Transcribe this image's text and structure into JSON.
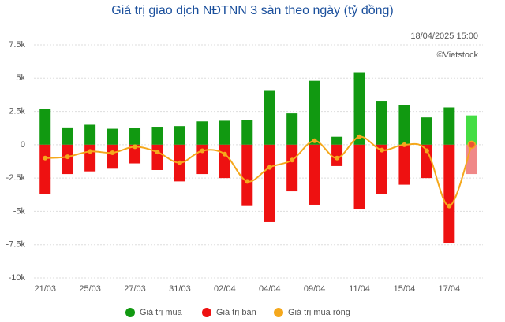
{
  "chart_data": {
    "type": "bar_line",
    "title": "Giá trị giao dịch NĐTNN 3 sàn theo ngày (tỷ đồng)",
    "annotations": [
      "18/04/2025 15:00",
      "©Vietstock"
    ],
    "categories": [
      "21/03",
      null,
      "25/03",
      null,
      "27/03",
      null,
      "31/03",
      null,
      "02/04",
      null,
      "04/04",
      null,
      "09/04",
      null,
      "11/04",
      null,
      "15/04",
      null,
      "17/04",
      null
    ],
    "series": [
      {
        "name": "Giá trị mua",
        "type": "bar",
        "color": "#119911",
        "highlight_color": "#44dd44",
        "values": [
          2700,
          1300,
          1500,
          1200,
          1250,
          1350,
          1400,
          1750,
          1800,
          1850,
          4100,
          2350,
          4800,
          600,
          5400,
          3300,
          3000,
          2050,
          2800,
          2200
        ]
      },
      {
        "name": "Giá trị bán",
        "type": "bar",
        "color": "#ee1111",
        "highlight_color": "#f08888",
        "values": [
          -3700,
          -2200,
          -2000,
          -1800,
          -1400,
          -1900,
          -2750,
          -2200,
          -2500,
          -4600,
          -5800,
          -3500,
          -4500,
          -1600,
          -4800,
          -3700,
          -3000,
          -2500,
          -7400,
          -2200
        ]
      },
      {
        "name": "Giá trị mua ròng",
        "type": "line",
        "color": "#f5a81c",
        "highlight_color": "#ee5533",
        "values": [
          -1000,
          -900,
          -500,
          -600,
          -150,
          -550,
          -1350,
          -450,
          -700,
          -2750,
          -1700,
          -1150,
          300,
          -1000,
          600,
          -400,
          0,
          -450,
          -4600,
          0
        ]
      }
    ],
    "ylim": [
      -10000,
      7500
    ],
    "yticks": [
      {
        "value": -10000,
        "label": "-10k"
      },
      {
        "value": -7500,
        "label": "-7.5k"
      },
      {
        "value": -5000,
        "label": "-5k"
      },
      {
        "value": -2500,
        "label": "-2.5k"
      },
      0,
      {
        "value": 2500,
        "label": "2.5k"
      },
      {
        "value": 5000,
        "label": "5k"
      },
      {
        "value": 7500,
        "label": "7.5k"
      }
    ],
    "grid": true,
    "legend": "bottom"
  }
}
